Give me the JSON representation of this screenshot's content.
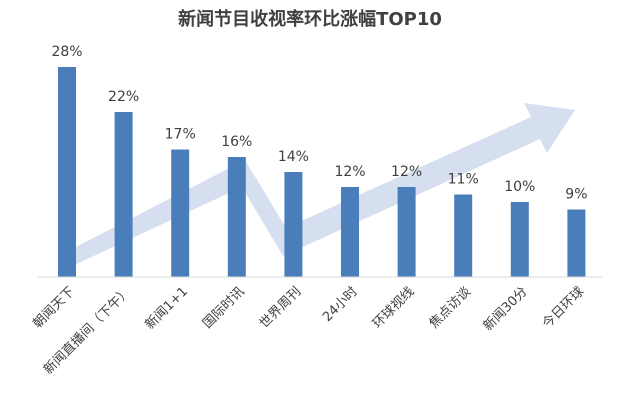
{
  "chart_data": {
    "type": "bar",
    "title": "新闻节目收视率环比涨幅TOP10",
    "categories": [
      "朝闻天下",
      "新闻直播间（下午）",
      "新闻1+1",
      "国际时讯",
      "世界周刊",
      "24小时",
      "环球视线",
      "焦点访谈",
      "新闻30分",
      "今日环球"
    ],
    "values": [
      28,
      22,
      17,
      16,
      14,
      12,
      12,
      11,
      10,
      9
    ],
    "value_labels": [
      "28%",
      "22%",
      "17%",
      "16%",
      "14%",
      "12%",
      "12%",
      "11%",
      "10%",
      "9%"
    ],
    "unit": "%",
    "ylim": [
      0,
      30
    ],
    "grid": false,
    "legend": "none",
    "colors": {
      "bar": "#4a7ebb",
      "trend_arrow": "#d5dff0",
      "axis": "#d9d9d9",
      "text": "#404040"
    },
    "decorations": {
      "trend_arrow_icon": "upward-trend-arrow-icon"
    }
  }
}
